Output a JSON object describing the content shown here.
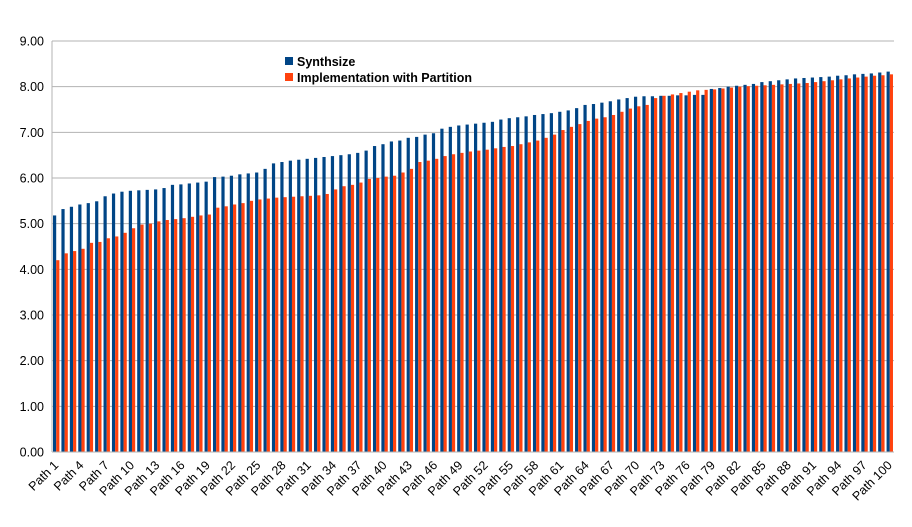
{
  "chart_data": {
    "type": "bar",
    "title": "",
    "xlabel": "",
    "ylabel": "",
    "ylim": [
      0,
      9
    ],
    "y_ticks": [
      "0.00",
      "1.00",
      "2.00",
      "3.00",
      "4.00",
      "5.00",
      "6.00",
      "7.00",
      "8.00",
      "9.00"
    ],
    "grid": "horizontal",
    "legend_position": "top-center",
    "colors": [
      "#004586",
      "#ff420e"
    ],
    "categories": [
      "Path 1",
      "Path 2",
      "Path 3",
      "Path 4",
      "Path 5",
      "Path 6",
      "Path 7",
      "Path 8",
      "Path 9",
      "Path 10",
      "Path 11",
      "Path 12",
      "Path 13",
      "Path 14",
      "Path 15",
      "Path 16",
      "Path 17",
      "Path 18",
      "Path 19",
      "Path 20",
      "Path 21",
      "Path 22",
      "Path 23",
      "Path 24",
      "Path 25",
      "Path 26",
      "Path 27",
      "Path 28",
      "Path 29",
      "Path 30",
      "Path 31",
      "Path 32",
      "Path 33",
      "Path 34",
      "Path 35",
      "Path 36",
      "Path 37",
      "Path 38",
      "Path 39",
      "Path 40",
      "Path 41",
      "Path 42",
      "Path 43",
      "Path 44",
      "Path 45",
      "Path 46",
      "Path 47",
      "Path 48",
      "Path 49",
      "Path 50",
      "Path 51",
      "Path 52",
      "Path 53",
      "Path 54",
      "Path 55",
      "Path 56",
      "Path 57",
      "Path 58",
      "Path 59",
      "Path 60",
      "Path 61",
      "Path 62",
      "Path 63",
      "Path 64",
      "Path 65",
      "Path 66",
      "Path 67",
      "Path 68",
      "Path 69",
      "Path 70",
      "Path 71",
      "Path 72",
      "Path 73",
      "Path 74",
      "Path 75",
      "Path 76",
      "Path 77",
      "Path 78",
      "Path 79",
      "Path 80",
      "Path 81",
      "Path 82",
      "Path 83",
      "Path 84",
      "Path 85",
      "Path 86",
      "Path 87",
      "Path 88",
      "Path 89",
      "Path 90",
      "Path 91",
      "Path 92",
      "Path 93",
      "Path 94",
      "Path 95",
      "Path 96",
      "Path 97",
      "Path 98",
      "Path 99",
      "Path 100"
    ],
    "visible_tick_labels": [
      "Path 1",
      "Path 4",
      "Path 7",
      "Path 10",
      "Path 13",
      "Path 16",
      "Path 19",
      "Path 22",
      "Path 25",
      "Path 28",
      "Path 31",
      "Path 34",
      "Path 37",
      "Path 40",
      "Path 43",
      "Path 46",
      "Path 49",
      "Path 52",
      "Path 55",
      "Path 58",
      "Path 61",
      "Path 64",
      "Path 67",
      "Path 70",
      "Path 73",
      "Path 76",
      "Path 79",
      "Path 82",
      "Path 85",
      "Path 88",
      "Path 91",
      "Path 94",
      "Path 97",
      "Path 100"
    ],
    "series": [
      {
        "name": "Synthsize",
        "values": [
          5.18,
          5.32,
          5.37,
          5.42,
          5.45,
          5.49,
          5.6,
          5.66,
          5.7,
          5.72,
          5.73,
          5.74,
          5.75,
          5.78,
          5.85,
          5.86,
          5.88,
          5.9,
          5.92,
          6.02,
          6.03,
          6.05,
          6.08,
          6.1,
          6.12,
          6.2,
          6.32,
          6.35,
          6.38,
          6.4,
          6.42,
          6.44,
          6.46,
          6.48,
          6.5,
          6.52,
          6.55,
          6.6,
          6.7,
          6.74,
          6.8,
          6.82,
          6.88,
          6.9,
          6.95,
          6.98,
          7.08,
          7.12,
          7.15,
          7.17,
          7.19,
          7.21,
          7.23,
          7.28,
          7.31,
          7.33,
          7.35,
          7.38,
          7.4,
          7.42,
          7.45,
          7.48,
          7.53,
          7.6,
          7.62,
          7.65,
          7.68,
          7.72,
          7.75,
          7.78,
          7.79,
          7.79,
          7.8,
          7.8,
          7.81,
          7.81,
          7.82,
          7.82,
          7.95,
          7.97,
          8.0,
          8.02,
          8.04,
          8.06,
          8.1,
          8.12,
          8.14,
          8.16,
          8.18,
          8.19,
          8.2,
          8.21,
          8.22,
          8.24,
          8.25,
          8.27,
          8.28,
          8.29,
          8.31,
          8.33
        ]
      },
      {
        "name": "Implementation with Partition",
        "values": [
          4.2,
          4.35,
          4.4,
          4.45,
          4.58,
          4.6,
          4.68,
          4.72,
          4.8,
          4.9,
          4.98,
          5.0,
          5.05,
          5.08,
          5.1,
          5.12,
          5.15,
          5.18,
          5.2,
          5.35,
          5.38,
          5.42,
          5.45,
          5.5,
          5.53,
          5.55,
          5.57,
          5.58,
          5.59,
          5.6,
          5.61,
          5.62,
          5.65,
          5.75,
          5.82,
          5.85,
          5.9,
          5.98,
          6.0,
          6.03,
          6.05,
          6.12,
          6.2,
          6.35,
          6.38,
          6.42,
          6.48,
          6.52,
          6.55,
          6.58,
          6.6,
          6.62,
          6.65,
          6.68,
          6.7,
          6.74,
          6.78,
          6.82,
          6.88,
          6.95,
          7.05,
          7.12,
          7.18,
          7.25,
          7.3,
          7.33,
          7.38,
          7.45,
          7.52,
          7.57,
          7.6,
          7.75,
          7.8,
          7.83,
          7.86,
          7.89,
          7.92,
          7.93,
          7.94,
          7.96,
          7.98,
          8.0,
          8.01,
          8.02,
          8.03,
          8.04,
          8.05,
          8.06,
          8.07,
          8.08,
          8.1,
          8.12,
          8.14,
          8.16,
          8.18,
          8.2,
          8.22,
          8.24,
          8.25,
          8.27
        ]
      }
    ]
  }
}
